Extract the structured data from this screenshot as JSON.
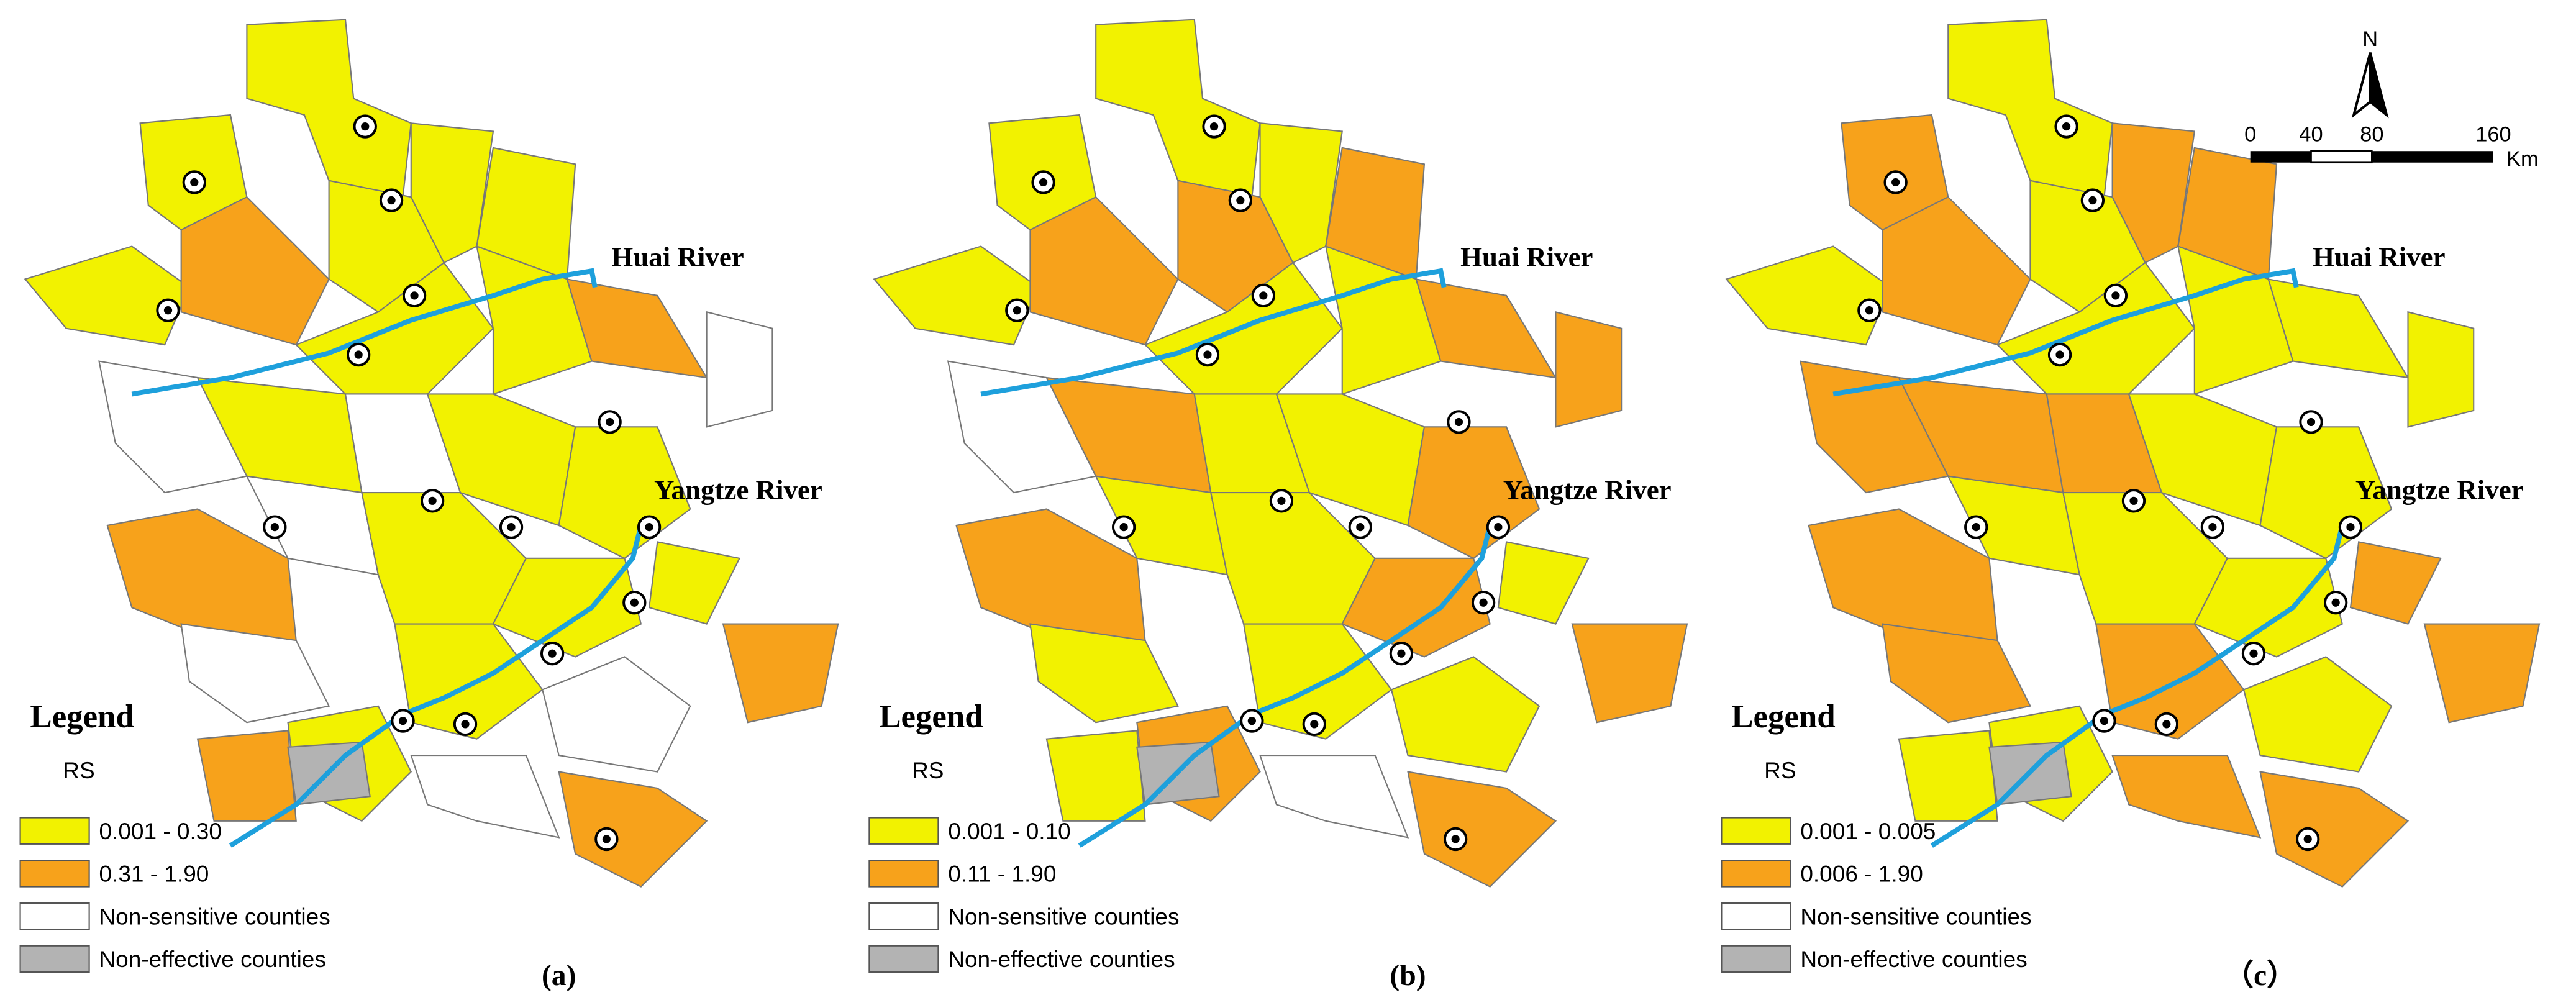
{
  "panels": [
    {
      "label": "(a)",
      "legend": {
        "title": "Legend",
        "subtitle": "RS",
        "items": [
          "0.001 - 0.30",
          "0.31 - 1.90",
          "Non-sensitive counties",
          "Non-effective counties"
        ]
      },
      "rivers": [
        "Huai River",
        "Yangtze River"
      ]
    },
    {
      "label": "(b)",
      "legend": {
        "title": "Legend",
        "subtitle": "RS",
        "items": [
          "0.001 - 0.10",
          "0.11 - 1.90",
          "Non-sensitive counties",
          "Non-effective counties"
        ]
      },
      "rivers": [
        "Huai River",
        "Yangtze River"
      ]
    },
    {
      "label": "（c）",
      "legend": {
        "title": "Legend",
        "subtitle": "RS",
        "items": [
          "0.001 - 0.005",
          "0.006 - 1.90",
          "Non-sensitive counties",
          "Non-effective counties"
        ]
      },
      "rivers": [
        "Huai River",
        "Yangtze River"
      ]
    }
  ],
  "scale_bar": {
    "labels": [
      "0",
      "40",
      "80",
      "160",
      "Km"
    ],
    "north": "N"
  }
}
